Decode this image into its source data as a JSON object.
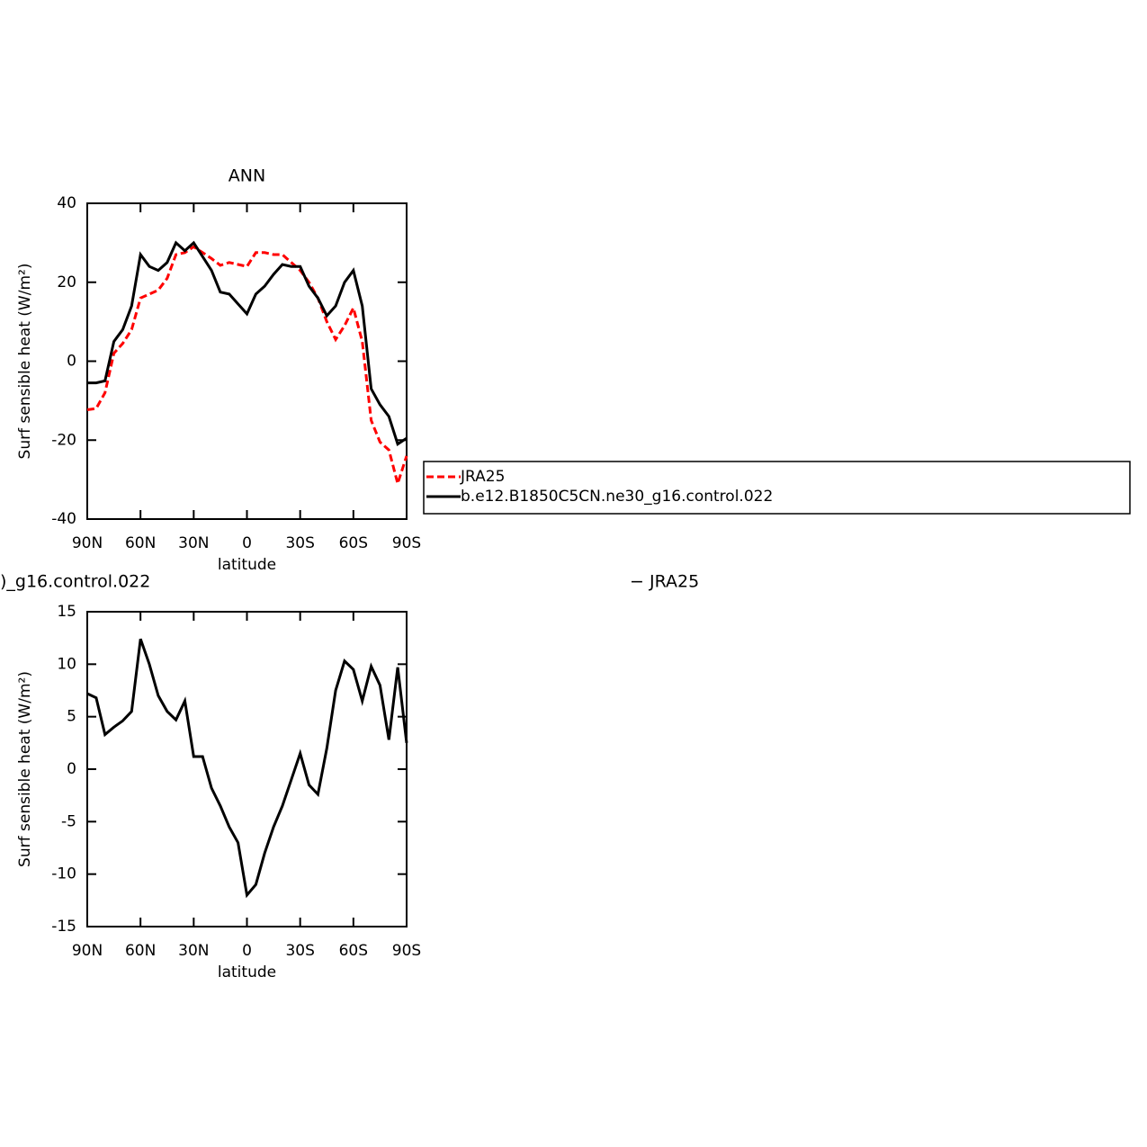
{
  "chart_data": [
    {
      "type": "line",
      "title": "ANN",
      "ylabel": "Surf sensible heat (W/m²)",
      "xlabel": "latitude",
      "x": [
        90,
        85,
        80,
        75,
        70,
        65,
        60,
        55,
        50,
        45,
        40,
        35,
        30,
        25,
        20,
        15,
        10,
        5,
        0,
        -5,
        -10,
        -15,
        -20,
        -25,
        -30,
        -35,
        -40,
        -45,
        -50,
        -55,
        -60,
        -65,
        -70,
        -75,
        -80,
        -85,
        -90
      ],
      "xlim": [
        90,
        -90
      ],
      "xticks": [
        {
          "value": 90,
          "label": "90N"
        },
        {
          "value": 60,
          "label": "60N"
        },
        {
          "value": 30,
          "label": "30N"
        },
        0,
        {
          "value": -30,
          "label": "30S"
        },
        {
          "value": -60,
          "label": "60S"
        },
        {
          "value": -90,
          "label": "90S"
        }
      ],
      "ylim": [
        -40,
        40
      ],
      "yticks": [
        -40,
        -20,
        0,
        20,
        40
      ],
      "series": [
        {
          "name": "JRA25",
          "color": "#ff0000",
          "line_style": "dashed",
          "values": [
            -12.3,
            -12,
            -8,
            2,
            4.5,
            8,
            16,
            17,
            18,
            21,
            27,
            27.5,
            29,
            27.5,
            26,
            24.3,
            25,
            24.5,
            24,
            27.5,
            27.5,
            27,
            27,
            25,
            23,
            20,
            16,
            10,
            5.5,
            9,
            13.5,
            5,
            -15,
            -20.5,
            -22.5,
            -31,
            -24
          ]
        },
        {
          "name": "b.e12.B1850C5CN.ne30_g16.control.022",
          "color": "#000000",
          "line_style": "solid",
          "values": [
            -5.5,
            -5.5,
            -5,
            5,
            8,
            14,
            27,
            24,
            23,
            25,
            30,
            28,
            30,
            26.5,
            23,
            17.5,
            17,
            14.5,
            12,
            17,
            19,
            22,
            24.5,
            24,
            24,
            19,
            16,
            11.5,
            14,
            20,
            23,
            14,
            -7,
            -11,
            -14,
            -21,
            -19.5
          ]
        }
      ]
    },
    {
      "type": "line",
      "title_left": ")_g16.control.022",
      "title_right": "− JRA25",
      "ylabel": "Surf sensible heat (W/m²)",
      "xlabel": "latitude",
      "x": [
        90,
        85,
        80,
        75,
        70,
        65,
        60,
        55,
        50,
        45,
        40,
        35,
        30,
        25,
        20,
        15,
        10,
        5,
        0,
        -5,
        -10,
        -15,
        -20,
        -25,
        -30,
        -35,
        -40,
        -45,
        -50,
        -55,
        -60,
        -65,
        -70,
        -75,
        -80,
        -85,
        -90
      ],
      "xlim": [
        90,
        -90
      ],
      "xticks": [
        {
          "value": 90,
          "label": "90N"
        },
        {
          "value": 60,
          "label": "60N"
        },
        {
          "value": 30,
          "label": "30N"
        },
        0,
        {
          "value": -30,
          "label": "30S"
        },
        {
          "value": -60,
          "label": "60S"
        },
        {
          "value": -90,
          "label": "90S"
        }
      ],
      "ylim": [
        -15,
        15
      ],
      "yticks": [
        -15,
        -10,
        -5,
        0,
        5,
        10,
        15
      ],
      "series": [
        {
          "color": "#000000",
          "line_style": "solid",
          "values": [
            7.2,
            6.8,
            3.3,
            4,
            4.6,
            5.5,
            12.4,
            10,
            7,
            5.5,
            4.7,
            6.5,
            1.2,
            1.2,
            -1.8,
            -3.5,
            -5.5,
            -7,
            -12,
            -11,
            -8,
            -5.5,
            -3.5,
            -1,
            1.5,
            -1.5,
            -2.4,
            2,
            7.5,
            10.3,
            9.5,
            6.5,
            9.8,
            8,
            2.8,
            9.7,
            2.5
          ]
        }
      ]
    }
  ]
}
